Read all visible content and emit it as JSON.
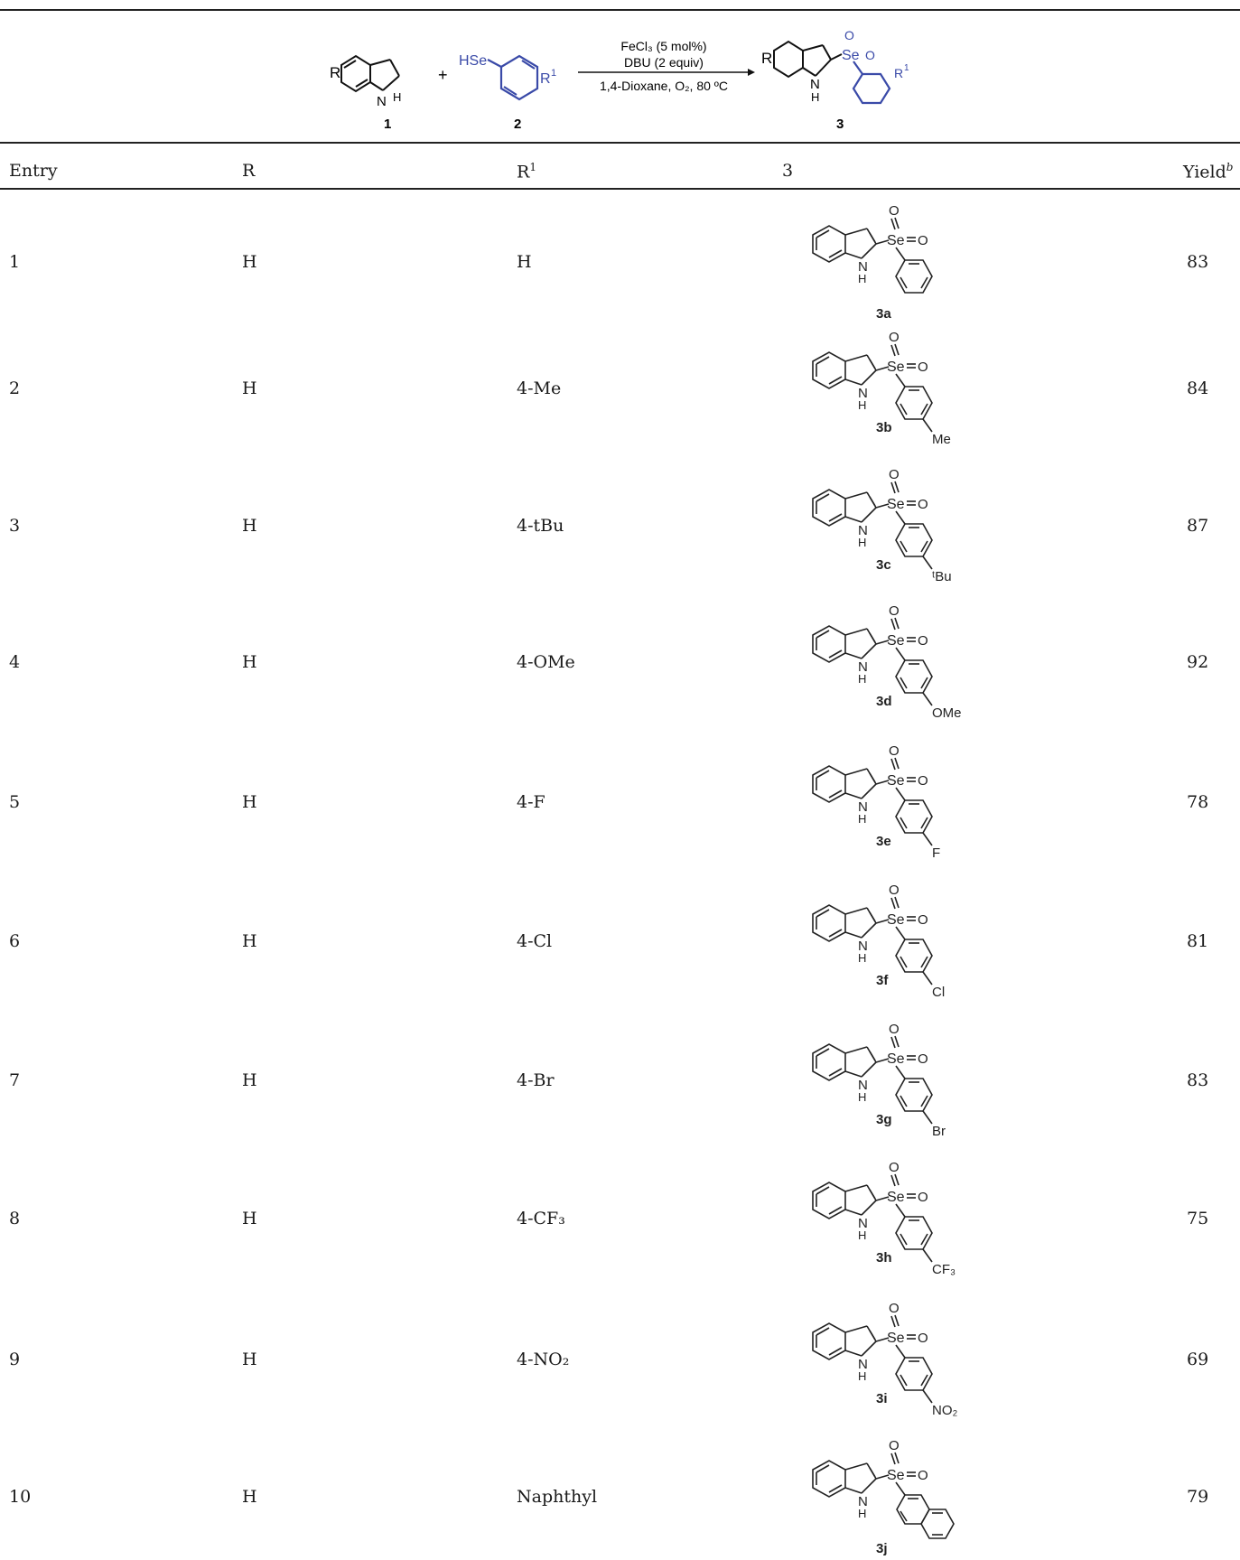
{
  "scheme": {
    "reactant1_label": "1",
    "reactant2_label": "2",
    "product_label": "3",
    "plus": "+",
    "hse_label": "HSe",
    "r_label": "R",
    "r1_label": "R",
    "r1_sup": "1",
    "nh_n": "N",
    "nh_h": "H",
    "se_label": "Se",
    "o_label": "O",
    "condition_line1": "FeCl₃ (5 mol%)",
    "condition_line2": "DBU (2 equiv)",
    "condition_line3": "1,4-Dioxane, O₂, 80 ºC",
    "blue_color": "#3a4aa8"
  },
  "table": {
    "headers": {
      "entry": "Entry",
      "r": "R",
      "r1_main": "R",
      "r1_sup": "1",
      "product": "3",
      "yield_main": "Yield",
      "yield_sup": "b"
    },
    "rows": [
      {
        "entry": "1",
        "r": "H",
        "r1": "H",
        "label": "3a",
        "sub": "",
        "yield": "83"
      },
      {
        "entry": "2",
        "r": "H",
        "r1": "4-Me",
        "label": "3b",
        "sub": "Me",
        "yield": "84"
      },
      {
        "entry": "3",
        "r": "H",
        "r1": "4-tBu",
        "label": "3c",
        "sub": "ᵗBu",
        "yield": "87"
      },
      {
        "entry": "4",
        "r": "H",
        "r1": "4-OMe",
        "label": "3d",
        "sub": "OMe",
        "yield": "92"
      },
      {
        "entry": "5",
        "r": "H",
        "r1": "4-F",
        "label": "3e",
        "sub": "F",
        "yield": "78"
      },
      {
        "entry": "6",
        "r": "H",
        "r1": "4-Cl",
        "label": "3f",
        "sub": "Cl",
        "yield": "81"
      },
      {
        "entry": "7",
        "r": "H",
        "r1": "4-Br",
        "label": "3g",
        "sub": "Br",
        "yield": "83"
      },
      {
        "entry": "8",
        "r": "H",
        "r1": "4-CF₃",
        "label": "3h",
        "sub": "CF₃",
        "yield": "75"
      },
      {
        "entry": "9",
        "r": "H",
        "r1": "4-NO₂",
        "label": "3i",
        "sub": "NO₂",
        "yield": "69"
      },
      {
        "entry": "10",
        "r": "H",
        "r1": "Naphthyl",
        "label": "3j",
        "sub": "",
        "yield": "79"
      }
    ]
  }
}
